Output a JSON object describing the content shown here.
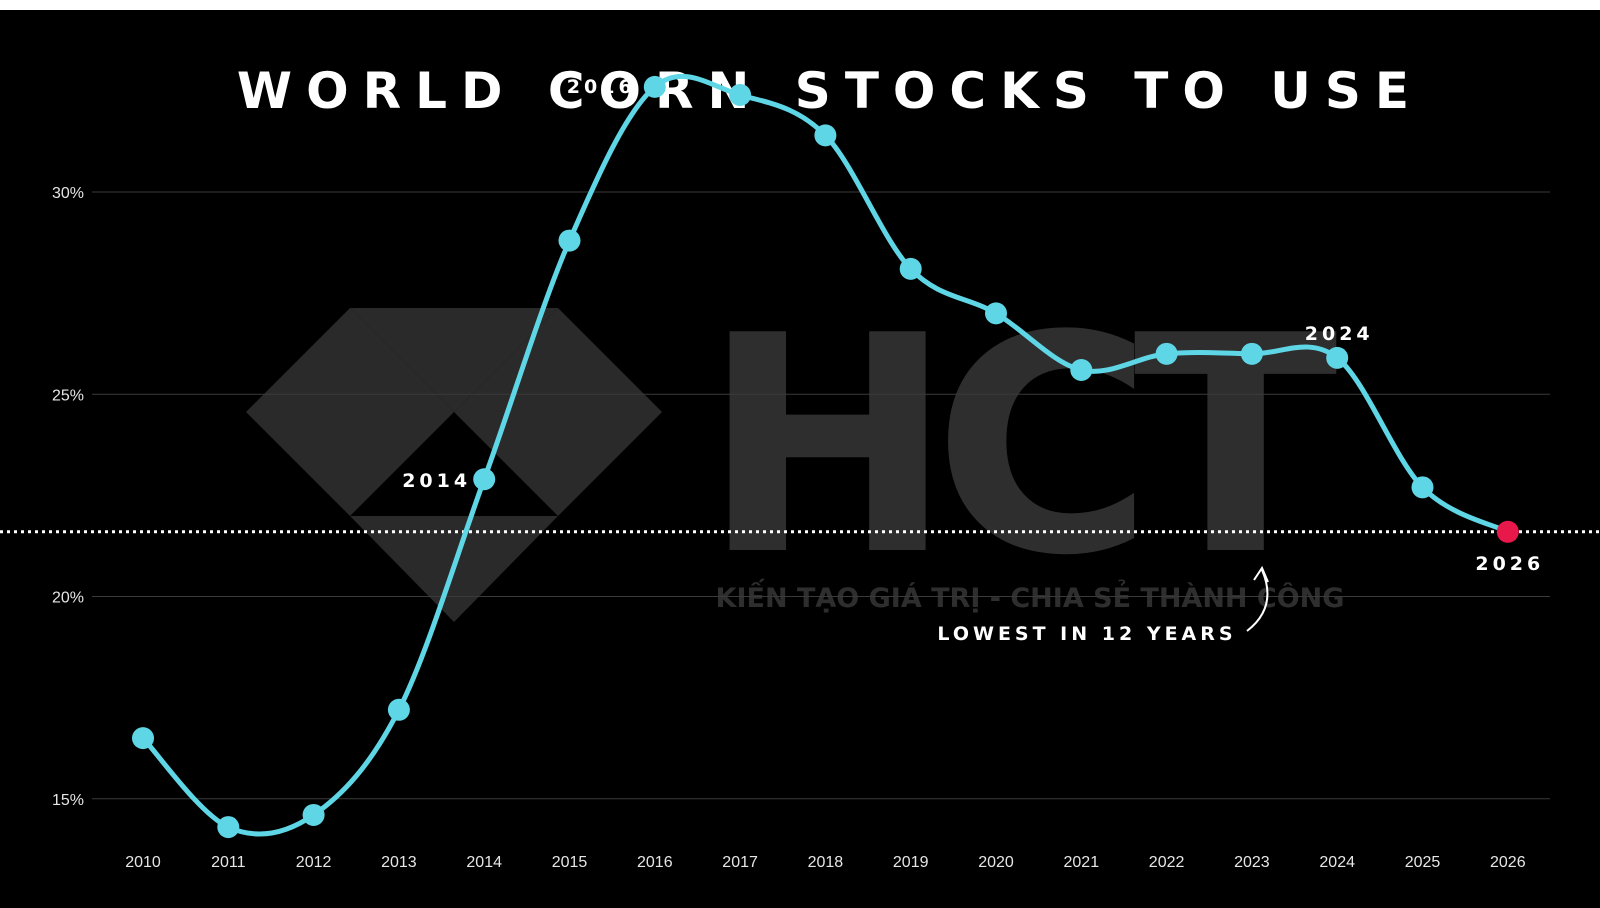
{
  "chart_data": {
    "type": "line",
    "title": "WORLD CORN STOCKS TO USE",
    "xlabel": "",
    "ylabel": "",
    "x": [
      "2010",
      "2011",
      "2012",
      "2013",
      "2014",
      "2015",
      "2016",
      "2017",
      "2018",
      "2019",
      "2020",
      "2021",
      "2022",
      "2023",
      "2024",
      "2025",
      "2026"
    ],
    "series": [
      {
        "values": [
          16.5,
          14.3,
          14.6,
          17.2,
          22.9,
          28.8,
          32.6,
          32.4,
          31.4,
          28.1,
          27.0,
          25.6,
          26.0,
          26.0,
          25.9,
          22.7,
          21.6
        ]
      }
    ],
    "yticks": [
      15,
      20,
      25,
      30
    ],
    "ytick_labels": [
      "15%",
      "20%",
      "25%",
      "30%"
    ],
    "ylim": [
      12.3,
      34.5
    ],
    "grid": true,
    "line_color": "#5fd6e6",
    "highlight_color": "#e8194a",
    "highlight_point": "2026",
    "point_labels": [
      "2014",
      "2016",
      "2024",
      "2026"
    ],
    "reference_line": {
      "value": 21.6,
      "style": "dotted",
      "label": "LOWEST IN 12 YEARS"
    }
  },
  "watermark": {
    "text": "HCT",
    "tagline": "KIẾN TẠO GIÁ TRỊ - CHIA SẺ THÀNH CÔNG"
  },
  "colors": {
    "background": "#000000",
    "grid": "#3a3a3a",
    "text": "#ffffff"
  }
}
